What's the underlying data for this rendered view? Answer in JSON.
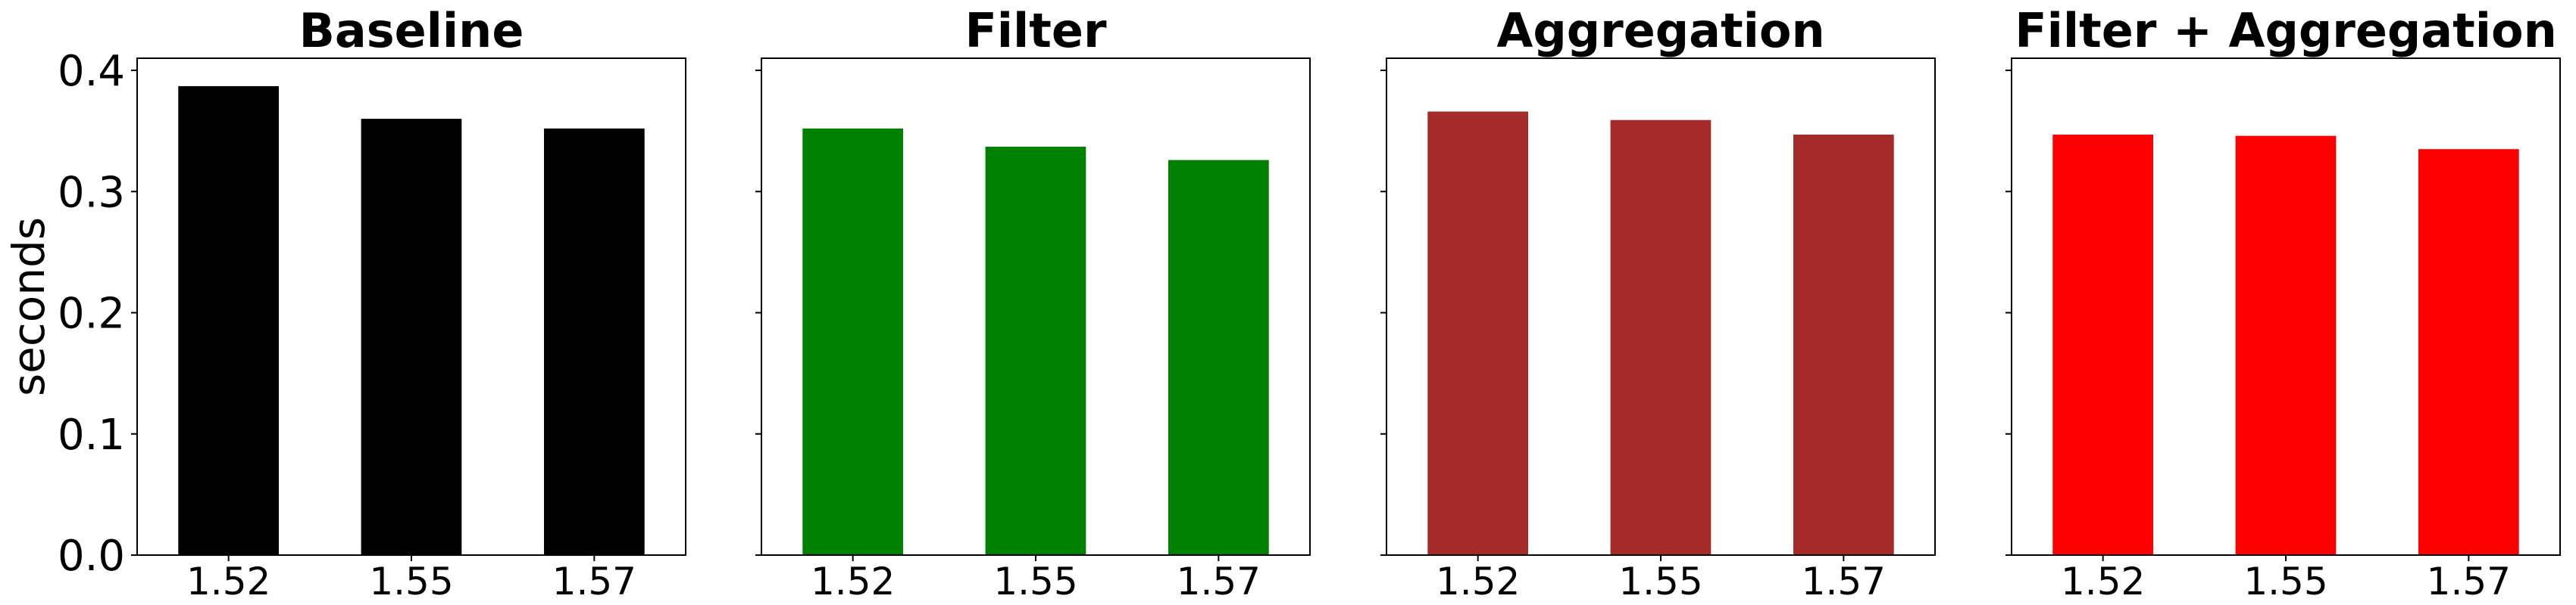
{
  "chart_data": [
    {
      "type": "bar",
      "title": "Baseline",
      "ylabel": "seconds",
      "categories": [
        "1.52",
        "1.55",
        "1.57"
      ],
      "values": [
        0.387,
        0.36,
        0.352
      ],
      "color": "#000000",
      "ylim": [
        0,
        0.41
      ],
      "yticks": [
        "0.0",
        "0.1",
        "0.2",
        "0.3",
        "0.4"
      ]
    },
    {
      "type": "bar",
      "title": "Filter",
      "categories": [
        "1.52",
        "1.55",
        "1.57"
      ],
      "values": [
        0.352,
        0.337,
        0.326
      ],
      "color": "#008000",
      "ylim": [
        0,
        0.41
      ]
    },
    {
      "type": "bar",
      "title": "Aggregation",
      "categories": [
        "1.52",
        "1.55",
        "1.57"
      ],
      "values": [
        0.366,
        0.359,
        0.347
      ],
      "color": "#a52a2a",
      "ylim": [
        0,
        0.41
      ]
    },
    {
      "type": "bar",
      "title": "Filter + Aggregation",
      "categories": [
        "1.52",
        "1.55",
        "1.57"
      ],
      "values": [
        0.347,
        0.346,
        0.335
      ],
      "color": "#ff0000",
      "ylim": [
        0,
        0.41
      ]
    }
  ]
}
